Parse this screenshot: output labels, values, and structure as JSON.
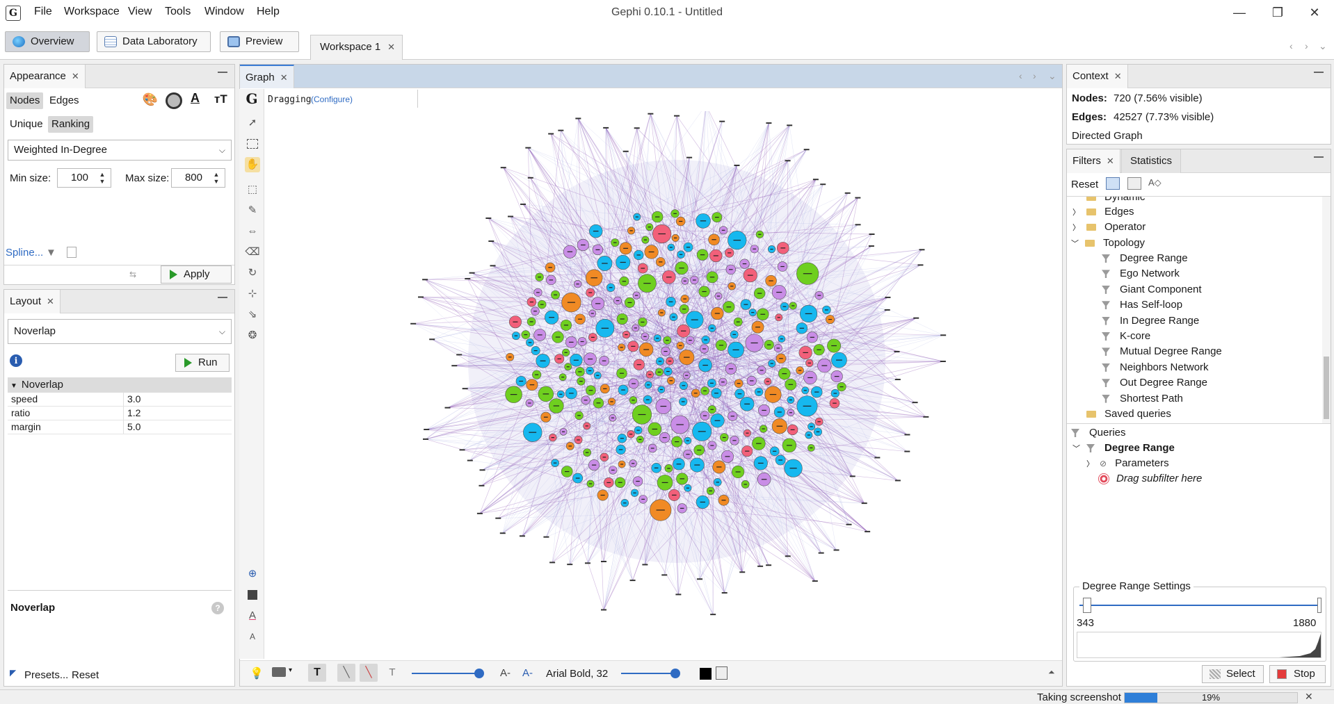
{
  "titlebar": {
    "logo_text": "G",
    "title": "Gephi 0.10.1 - Untitled",
    "menu": [
      "File",
      "Workspace",
      "View",
      "Tools",
      "Window",
      "Help"
    ],
    "minimize": "—",
    "maximize": "❐",
    "close": "✕"
  },
  "toolbar": {
    "overview": "Overview",
    "data_lab": "Data Laboratory",
    "preview": "Preview",
    "workspace_tab": "Workspace 1"
  },
  "appearance": {
    "tab": "Appearance",
    "nodes": "Nodes",
    "edges": "Edges",
    "unique": "Unique",
    "ranking": "Ranking",
    "attribute": "Weighted In-Degree",
    "min_size_label": "Min size:",
    "min_size": "100",
    "max_size_label": "Max size:",
    "max_size": "800",
    "spline": "Spline...",
    "apply": "Apply"
  },
  "layout": {
    "tab": "Layout",
    "algorithm": "Noverlap",
    "run": "Run",
    "section": "Noverlap",
    "props": [
      {
        "name": "speed",
        "value": "3.0"
      },
      {
        "name": "ratio",
        "value": "1.2"
      },
      {
        "name": "margin",
        "value": "5.0"
      }
    ],
    "description_title": "Noverlap",
    "presets": "Presets...",
    "reset": "Reset"
  },
  "graph": {
    "tab": "Graph",
    "mode": "Dragging",
    "configure": "(Configure)",
    "font_label": "Arial Bold, 32"
  },
  "context": {
    "tab": "Context",
    "nodes_label": "Nodes:",
    "nodes_value": "720 (7.56% visible)",
    "edges_label": "Edges:",
    "edges_value": "42527 (7.73% visible)",
    "graph_type": "Directed Graph"
  },
  "filters": {
    "tab": "Filters",
    "stats_tab": "Statistics",
    "reset": "Reset",
    "tree_partial": "Dynamic",
    "folders": [
      "Edges",
      "Operator",
      "Topology"
    ],
    "topology_items": [
      "Degree Range",
      "Ego Network",
      "Giant Component",
      "Has Self-loop",
      "In Degree Range",
      "K-core",
      "Mutual Degree Range",
      "Neighbors Network",
      "Out Degree Range",
      "Shortest Path"
    ],
    "saved": "Saved queries",
    "queries": "Queries",
    "query_name": "Degree Range",
    "parameters": "Parameters",
    "drag_hint": "Drag subfilter here",
    "settings_title": "Degree Range Settings",
    "range_min": "343",
    "range_max": "1880",
    "range_low_fraction": 0.033,
    "range_high_fraction": 1.0,
    "select": "Select",
    "stop": "Stop"
  },
  "status": {
    "task": "Taking screenshot",
    "progress_label": "19%",
    "progress": 0.19
  },
  "colors": {
    "green": "#6fcf1f",
    "blue": "#16b8ef",
    "violet": "#c98de6",
    "red": "#f2607a",
    "orange": "#f08a24",
    "edge": "#8a4fb0"
  }
}
